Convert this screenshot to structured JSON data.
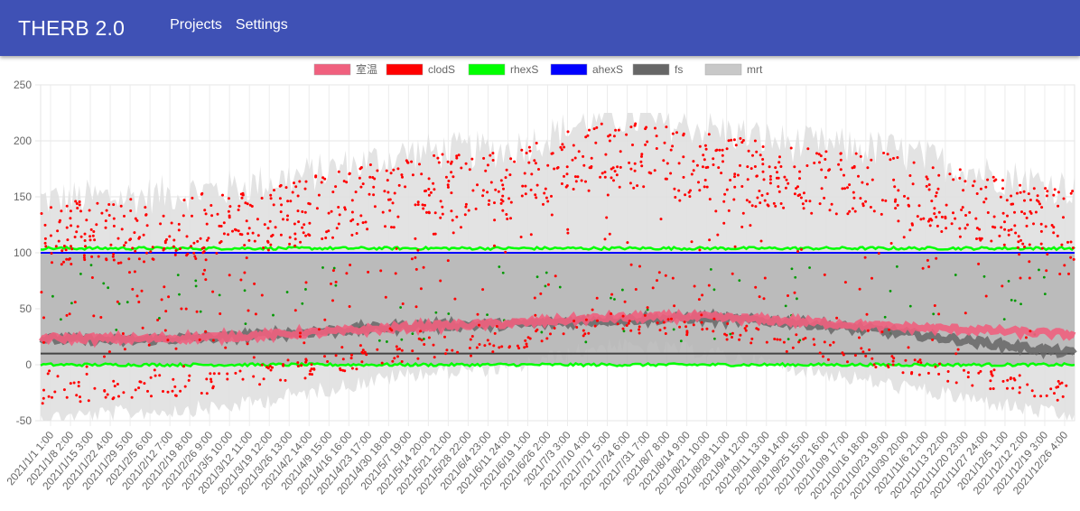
{
  "header": {
    "app_title": "THERB 2.0",
    "nav": [
      {
        "label": "Projects"
      },
      {
        "label": "Settings"
      }
    ],
    "background_color": "#3f51b5"
  },
  "chart_data": {
    "type": "line",
    "legend": [
      {
        "name": "室温",
        "color": "#f0607e"
      },
      {
        "name": "clodS",
        "color": "#ff0000"
      },
      {
        "name": "rhexS",
        "color": "#00ff00"
      },
      {
        "name": "ahexS",
        "color": "#0000ff"
      },
      {
        "name": "fs",
        "color": "#666666"
      },
      {
        "name": "mrt",
        "color": "#c8c8c8"
      }
    ],
    "legend_position": "top-center",
    "grid": true,
    "ylim": [
      -50,
      250
    ],
    "yticks": [
      -50,
      0,
      50,
      100,
      150,
      200,
      250
    ],
    "x_tick_labels": [
      "2021/1/1 1:00",
      "2021/1/8 2:00",
      "2021/1/15 3:00",
      "2021/1/22 4:00",
      "2021/1/29 5:00",
      "2021/2/5 6:00",
      "2021/2/12 7:00",
      "2021/2/19 8:00",
      "2021/2/26 9:00",
      "2021/3/5 10:00",
      "2021/3/12 11:00",
      "2021/3/19 12:00",
      "2021/3/26 13:00",
      "2021/4/2 14:00",
      "2021/4/9 15:00",
      "2021/4/16 16:00",
      "2021/4/23 17:00",
      "2021/4/30 18:00",
      "2021/5/7 19:00",
      "2021/5/14 20:00",
      "2021/5/21 21:00",
      "2021/5/28 22:00",
      "2021/6/4 23:00",
      "2021/6/11 24:00",
      "2021/6/19 1:00",
      "2021/6/26 2:00",
      "2021/7/3 3:00",
      "2021/7/10 4:00",
      "2021/7/17 5:00",
      "2021/7/24 6:00",
      "2021/7/31 7:00",
      "2021/8/7 8:00",
      "2021/8/14 9:00",
      "2021/8/21 10:00",
      "2021/8/28 11:00",
      "2021/9/4 12:00",
      "2021/9/11 13:00",
      "2021/9/18 14:00",
      "2021/9/25 15:00",
      "2021/10/2 16:00",
      "2021/10/9 17:00",
      "2021/10/16 18:00",
      "2021/10/23 19:00",
      "2021/10/30 20:00",
      "2021/11/6 21:00",
      "2021/11/13 22:00",
      "2021/11/20 23:00",
      "2021/11/27 24:00",
      "2021/12/5 1:00",
      "2021/12/12 2:00",
      "2021/12/19 3:00",
      "2021/12/26 4:00"
    ],
    "series_trends": {
      "室温": {
        "x_month": [
          1,
          2,
          3,
          4,
          5,
          6,
          7,
          8,
          9,
          10,
          11,
          12
        ],
        "approx_value": [
          24,
          23,
          25,
          29,
          34,
          37,
          42,
          43,
          39,
          34,
          31,
          27
        ]
      },
      "fs": {
        "x_month": [
          1,
          2,
          3,
          4,
          5,
          6,
          7,
          8,
          9,
          10,
          11,
          12
        ],
        "approx_value": [
          23,
          22,
          25,
          30,
          35,
          36,
          40,
          42,
          38,
          30,
          20,
          10
        ]
      },
      "clodS_band_center": {
        "x_month": [
          1,
          2,
          3,
          4,
          5,
          6,
          7,
          8,
          9,
          10,
          11,
          12
        ],
        "approx_value": [
          115,
          118,
          125,
          140,
          158,
          160,
          190,
          180,
          165,
          160,
          140,
          125
        ]
      },
      "clodS_night_low": {
        "x_month": [
          1,
          2,
          3,
          4,
          5,
          6,
          7,
          8,
          9,
          10,
          11,
          12
        ],
        "approx_value": [
          -35,
          -30,
          -25,
          -10,
          5,
          10,
          30,
          25,
          10,
          -5,
          -20,
          -35
        ]
      },
      "rhexS_upper": {
        "approx_value": 104
      },
      "rhexS_lower": {
        "approx_value": 0
      },
      "ahexS_line": {
        "approx_value": 100
      },
      "dark_reference_line": {
        "approx_value": 10
      }
    }
  }
}
